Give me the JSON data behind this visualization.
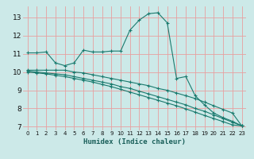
{
  "xlabel": "Humidex (Indice chaleur)",
  "ylabel": "",
  "bg_color": "#cce9e8",
  "grid_color": "#e8a0a0",
  "line_color": "#1a7a6e",
  "xlim": [
    -0.5,
    23.5
  ],
  "ylim": [
    6.8,
    13.6
  ],
  "xticks": [
    0,
    1,
    2,
    3,
    4,
    5,
    6,
    7,
    8,
    9,
    10,
    11,
    12,
    13,
    14,
    15,
    16,
    17,
    18,
    19,
    20,
    21,
    22,
    23
  ],
  "yticks": [
    7,
    8,
    9,
    10,
    11,
    12,
    13
  ],
  "line1_x": [
    0,
    1,
    2,
    3,
    4,
    5,
    6,
    7,
    8,
    9,
    10,
    11,
    12,
    13,
    14,
    15,
    16,
    17,
    18,
    19,
    20,
    21,
    22,
    23
  ],
  "line1_y": [
    11.05,
    11.05,
    11.1,
    10.5,
    10.35,
    10.5,
    11.2,
    11.1,
    11.1,
    11.15,
    11.15,
    12.3,
    12.85,
    13.2,
    13.25,
    12.7,
    9.65,
    9.75,
    8.7,
    8.2,
    7.75,
    7.5,
    7.3,
    7.05
  ],
  "line2_x": [
    0,
    1,
    2,
    3,
    4,
    5,
    6,
    7,
    8,
    9,
    10,
    11,
    12,
    13,
    14,
    15,
    16,
    17,
    18,
    19,
    20,
    21,
    22,
    23
  ],
  "line2_y": [
    10.1,
    10.1,
    10.1,
    10.1,
    10.1,
    10.0,
    9.95,
    9.85,
    9.75,
    9.65,
    9.55,
    9.45,
    9.35,
    9.25,
    9.1,
    9.0,
    8.85,
    8.7,
    8.55,
    8.35,
    8.15,
    7.95,
    7.75,
    7.05
  ],
  "line3_x": [
    0,
    1,
    2,
    3,
    4,
    5,
    6,
    7,
    8,
    9,
    10,
    11,
    12,
    13,
    14,
    15,
    16,
    17,
    18,
    19,
    20,
    21,
    22,
    23
  ],
  "line3_y": [
    10.05,
    10.0,
    9.95,
    9.9,
    9.85,
    9.75,
    9.65,
    9.55,
    9.45,
    9.35,
    9.2,
    9.1,
    8.95,
    8.8,
    8.65,
    8.5,
    8.35,
    8.2,
    8.0,
    7.85,
    7.65,
    7.45,
    7.25,
    7.05
  ],
  "line4_x": [
    0,
    1,
    2,
    3,
    4,
    5,
    6,
    7,
    8,
    9,
    10,
    11,
    12,
    13,
    14,
    15,
    16,
    17,
    18,
    19,
    20,
    21,
    22,
    23
  ],
  "line4_y": [
    10.0,
    9.95,
    9.9,
    9.82,
    9.75,
    9.65,
    9.55,
    9.45,
    9.32,
    9.2,
    9.05,
    8.9,
    8.75,
    8.6,
    8.45,
    8.3,
    8.15,
    7.98,
    7.8,
    7.62,
    7.45,
    7.28,
    7.1,
    7.05
  ]
}
